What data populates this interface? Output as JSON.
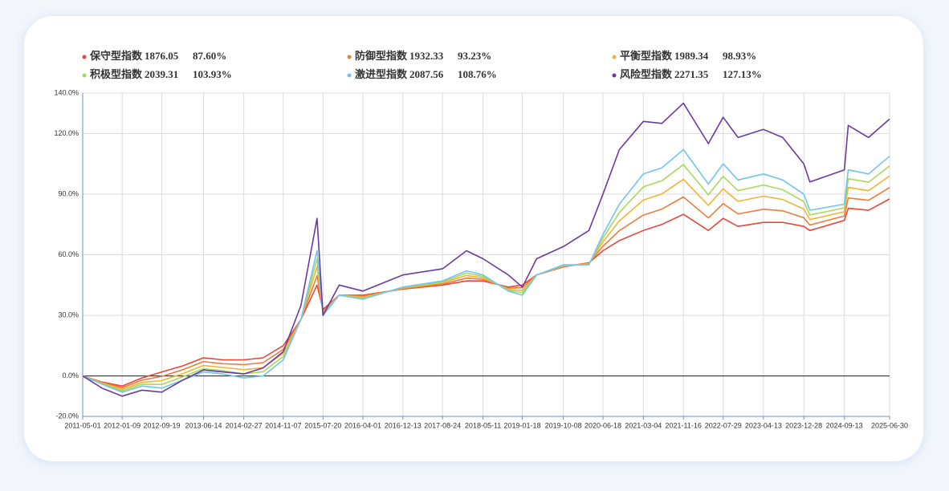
{
  "chart_data": {
    "type": "line",
    "series": [
      {
        "name": "保守型指数",
        "latest": 1876.05,
        "latest_change": "87.60%",
        "color": "#e8473a",
        "values": [
          0,
          -3,
          -5,
          -1,
          2,
          5,
          9,
          8,
          8,
          9,
          15,
          28,
          45,
          33,
          40,
          40,
          43,
          45,
          47,
          47,
          44,
          45,
          50,
          54,
          56,
          62,
          67,
          72,
          75,
          80,
          72,
          78,
          74,
          76,
          76,
          74,
          72,
          77,
          83,
          82,
          87.6
        ]
      },
      {
        "name": "防御型指数",
        "latest": 1932.33,
        "latest_change": "93.23%",
        "color": "#f07b3a",
        "values": [
          0,
          -3.3,
          -5.8,
          -2.1,
          -0.2,
          3.1,
          7.1,
          6.1,
          5.6,
          6.6,
          13.1,
          28,
          49.6,
          32.2,
          40,
          39.5,
          43.3,
          45.5,
          48.4,
          47.8,
          43.5,
          43.7,
          50,
          54.3,
          55.7,
          64.2,
          71.9,
          79.6,
          82.6,
          88.6,
          78.2,
          85.3,
          80.2,
          82.5,
          81.7,
          78.3,
          74.7,
          79.2,
          88.1,
          86.9,
          93.23
        ]
      },
      {
        "name": "平衡型指数",
        "latest": 1989.34,
        "latest_change": "98.93%",
        "color": "#f5b335",
        "values": [
          0,
          -3.5,
          -6.6,
          -3.2,
          -2.3,
          1.2,
          5.2,
          4.2,
          3.1,
          4.1,
          11.2,
          28,
          54.2,
          31.4,
          40,
          38.9,
          43.5,
          46.1,
          49.7,
          48.6,
          42.9,
          42.3,
          50,
          54.5,
          55.5,
          66.3,
          76.7,
          87.1,
          90.1,
          97.3,
          84.4,
          92.6,
          86.4,
          89,
          87.3,
          82.6,
          77.4,
          81.3,
          93.3,
          91.7,
          98.93
        ]
      },
      {
        "name": "积极型指数",
        "latest": 2039.31,
        "latest_change": "103.93%",
        "color": "#a8d95a",
        "values": [
          0,
          -3.8,
          -7.3,
          -4.1,
          -4.2,
          -0.4,
          3.6,
          2.6,
          1.1,
          2.1,
          9.6,
          28,
          58.1,
          30.7,
          40,
          38.5,
          43.8,
          46.5,
          50.9,
          49.3,
          42.5,
          41.2,
          50,
          54.8,
          55.2,
          68.2,
          80.9,
          93.6,
          96.6,
          104.6,
          89.7,
          98.8,
          91.7,
          94.5,
          92.2,
          86.3,
          79.7,
          83.2,
          97.6,
          95.9,
          103.93
        ]
      },
      {
        "name": "激进型指数",
        "latest": 2087.56,
        "latest_change": "108.76%",
        "color": "#70c5ec",
        "values": [
          0,
          -4,
          -8,
          -5,
          -6,
          -2,
          2,
          1,
          -1,
          0,
          8,
          28,
          62,
          30,
          40,
          38,
          44,
          47,
          52,
          50,
          42,
          40,
          50,
          55,
          55,
          70,
          85,
          100,
          103,
          112,
          95,
          105,
          97,
          100,
          97,
          90,
          82,
          85,
          102,
          100,
          108.76
        ]
      },
      {
        "name": "风险型指数",
        "latest": 2271.35,
        "latest_change": "127.13%",
        "color": "#6a3aa0",
        "values": [
          0,
          -6,
          -10,
          -7,
          -8,
          -2,
          3,
          2,
          1,
          4,
          12,
          35,
          78,
          30,
          45,
          42,
          50,
          53,
          62,
          58,
          50,
          44,
          58,
          64,
          72,
          90,
          112,
          126,
          125,
          135,
          115,
          128,
          118,
          122,
          118,
          105,
          96,
          102,
          124,
          118,
          127.13
        ]
      }
    ],
    "x": [
      "2011-05-01",
      "2011-09-01",
      "2012-01-09",
      "2012-05-15",
      "2012-09-19",
      "2013-02-01",
      "2013-06-14",
      "2013-10-15",
      "2014-02-27",
      "2014-07-01",
      "2014-11-07",
      "2015-03-01",
      "2015-06-12",
      "2015-07-20",
      "2015-11-01",
      "2016-04-01",
      "2016-12-13",
      "2017-08-24",
      "2018-01-25",
      "2018-05-11",
      "2018-10-20",
      "2019-01-18",
      "2019-04-20",
      "2019-10-08",
      "2020-03-20",
      "2020-06-18",
      "2020-10-01",
      "2021-03-04",
      "2021-07-01",
      "2021-11-16",
      "2022-04-25",
      "2022-07-29",
      "2022-11-01",
      "2023-04-13",
      "2023-08-15",
      "2023-12-28",
      "2024-02-05",
      "2024-09-13",
      "2024-10-08",
      "2025-02-15",
      "2025-06-30"
    ],
    "xlim": [
      "2011-05-01",
      "2025-06-30"
    ],
    "xticks": [
      "2011-05-01",
      "2012-01-09",
      "2012-09-19",
      "2013-06-14",
      "2014-02-27",
      "2014-11-07",
      "2015-07-20",
      "2016-04-01",
      "2016-12-13",
      "2017-08-24",
      "2018-05-11",
      "2019-01-18",
      "2019-10-08",
      "2020-06-18",
      "2021-03-04",
      "2021-11-16",
      "2022-07-29",
      "2023-04-13",
      "2023-12-28",
      "2024-09-13",
      "2025-06-30"
    ],
    "ylim": [
      -20,
      140
    ],
    "yticks": [
      {
        "value": -20,
        "label": "-20.0%"
      },
      {
        "value": 0,
        "label": "0.0%"
      },
      {
        "value": 30,
        "label": "30.0%"
      },
      {
        "value": 60,
        "label": "60.0%"
      },
      {
        "value": 90,
        "label": "90.0%"
      },
      {
        "value": 120,
        "label": "120.0%"
      },
      {
        "value": 140,
        "label": "140.0%"
      }
    ],
    "grid": true
  }
}
